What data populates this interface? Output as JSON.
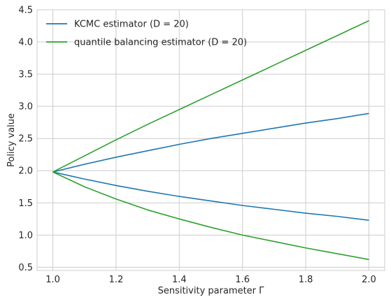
{
  "chart_data": {
    "type": "line",
    "title": "",
    "xlabel": "Sensitivity parameter Γ",
    "ylabel": "Policy value",
    "xlim": [
      0.95,
      2.05
    ],
    "ylim": [
      0.45,
      4.5
    ],
    "xticks": [
      1.0,
      1.2,
      1.4,
      1.6,
      1.8,
      2.0
    ],
    "xtick_labels": [
      "1.0",
      "1.2",
      "1.4",
      "1.6",
      "1.8",
      "2.0"
    ],
    "yticks": [
      0.5,
      1.0,
      1.5,
      2.0,
      2.5,
      3.0,
      3.5,
      4.0,
      4.5
    ],
    "ytick_labels": [
      "0.5",
      "1.0",
      "1.5",
      "2.0",
      "2.5",
      "3.0",
      "3.5",
      "4.0",
      "4.5"
    ],
    "grid": true,
    "legend_position": "top-left",
    "x": [
      1.0,
      1.1,
      1.2,
      1.3,
      1.4,
      1.5,
      1.6,
      1.7,
      1.8,
      1.9,
      2.0
    ],
    "series": [
      {
        "name": "KCMC estimator (D = 20)",
        "legend_key": "kcmc",
        "color": "#1f77b4",
        "upper": [
          1.98,
          2.1,
          2.21,
          2.31,
          2.41,
          2.5,
          2.58,
          2.66,
          2.74,
          2.81,
          2.89
        ],
        "lower": [
          1.98,
          1.87,
          1.77,
          1.68,
          1.6,
          1.53,
          1.46,
          1.4,
          1.34,
          1.29,
          1.23
        ]
      },
      {
        "name": "quantile balancing estimator (D = 20)",
        "legend_key": "quantile",
        "color": "#2ca02c",
        "upper": [
          1.98,
          2.23,
          2.48,
          2.72,
          2.95,
          3.18,
          3.41,
          3.64,
          3.87,
          4.1,
          4.33
        ],
        "lower": [
          1.98,
          1.75,
          1.56,
          1.39,
          1.25,
          1.12,
          1.0,
          0.9,
          0.8,
          0.71,
          0.62
        ]
      }
    ]
  }
}
